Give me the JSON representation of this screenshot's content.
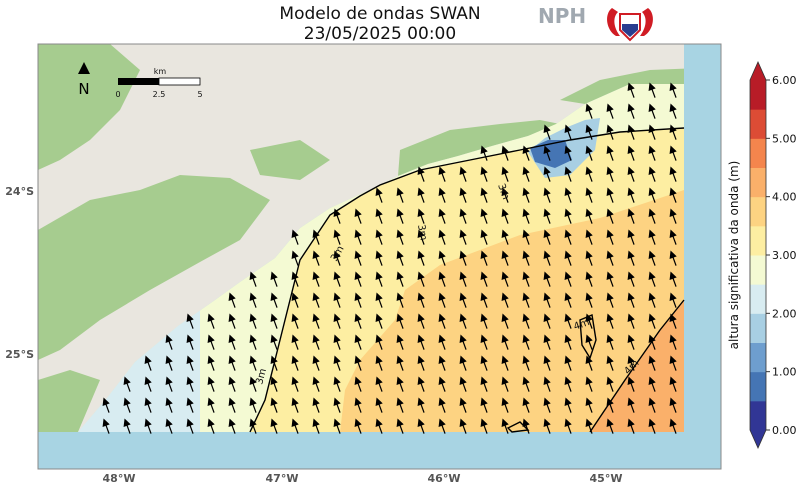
{
  "title": "Modelo de ondas SWAN",
  "datetime": "23/05/2025 00:00",
  "logo_text": "NPH",
  "north_label": "N",
  "scale_bar": {
    "unit": "km",
    "ticks": [
      "0",
      "2.5",
      "5"
    ]
  },
  "lat_labels": [
    "24°S",
    "25°S"
  ],
  "lon_labels": [
    "48°W",
    "47°W",
    "46°W",
    "45°W"
  ],
  "colorbar": {
    "title": "altura significativa da onda (m)",
    "tick_labels": [
      "0.00",
      "1.00",
      "2.00",
      "3.00",
      "4.00",
      "5.00",
      "6.00"
    ],
    "range": [
      0,
      6
    ],
    "colors": [
      "#313695",
      "#4575b4",
      "#6e9ece",
      "#a8cfe3",
      "#d8ecf1",
      "#f4fad3",
      "#fdeea2",
      "#fdd382",
      "#fab06a",
      "#f4854d",
      "#dc4c35",
      "#b81c27"
    ]
  },
  "contour_labels": [
    "3m",
    "3m",
    "3m",
    "3m",
    "4m",
    "4m"
  ],
  "colors": {
    "ocean": "#a8d4e3",
    "land": "#e9e6df",
    "forest": "#a6cc8f",
    "frame": "#888888"
  }
}
